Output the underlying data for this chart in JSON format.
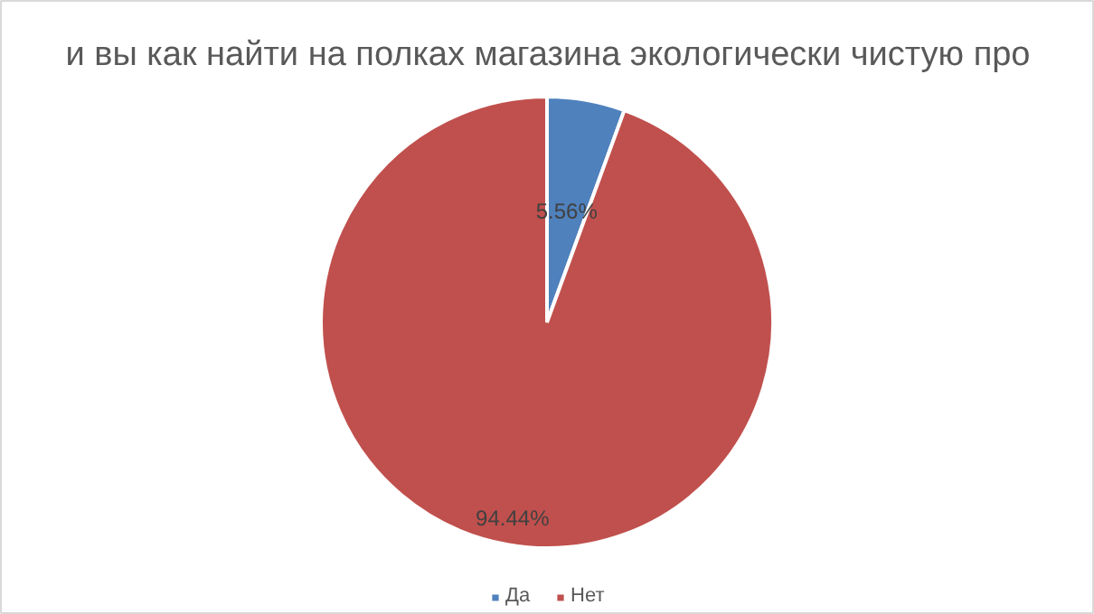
{
  "chart_data": {
    "type": "pie",
    "title": "и вы как найти на полках магазина экологически чистую про",
    "categories": [
      "Да",
      "Нет"
    ],
    "values": [
      5.56,
      94.44
    ],
    "colors": [
      "#4f81bd",
      "#c0504d"
    ],
    "value_labels": [
      "5.56%",
      "94.44%"
    ],
    "legend": "bottom"
  }
}
